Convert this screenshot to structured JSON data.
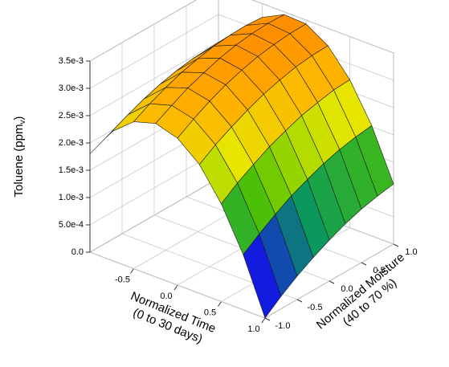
{
  "chart_data": {
    "type": "surface",
    "x_label": [
      "Normalized Time",
      "(0 to 30 days)"
    ],
    "y_label": [
      "Normalized Moisture",
      "(40 to 70 %)"
    ],
    "z_label": [
      "Toluene (ppm",
      "v",
      ")"
    ],
    "x": [
      -1,
      -0.75,
      -0.5,
      -0.25,
      0,
      0.25,
      0.5,
      0.75,
      1
    ],
    "y": [
      -1,
      -0.75,
      -0.5,
      -0.25,
      0,
      0.25,
      0.5,
      0.75,
      1
    ],
    "z": [
      [
        0.0018,
        0.00193,
        0.00204,
        0.00213,
        0.00218,
        0.00222,
        0.00223,
        0.00221,
        0.00217
      ],
      [
        0.00236,
        0.0025,
        0.00262,
        0.00272,
        0.00279,
        0.00284,
        0.00286,
        0.00285,
        0.00282
      ],
      [
        0.00269,
        0.00285,
        0.00298,
        0.00309,
        0.00317,
        0.00323,
        0.00326,
        0.00327,
        0.00325
      ],
      [
        0.00281,
        0.00297,
        0.00312,
        0.00323,
        0.00333,
        0.0034,
        0.00344,
        0.00346,
        0.00345
      ],
      [
        0.00269,
        0.00287,
        0.00303,
        0.00316,
        0.00326,
        0.00334,
        0.00339,
        0.00342,
        0.00343
      ],
      [
        0.00236,
        0.00255,
        0.00271,
        0.00285,
        0.00297,
        0.00306,
        0.00313,
        0.00317,
        0.00318
      ],
      [
        0.00179,
        0.002,
        0.00217,
        0.00233,
        0.00245,
        0.00256,
        0.00263,
        0.00269,
        0.00271
      ],
      [
        0.00101,
        0.00122,
        0.00141,
        0.00158,
        0.00171,
        0.00183,
        0.00192,
        0.00198,
        0.00202
      ],
      [
        0.0,
        0.00023,
        0.00043,
        0.0006,
        0.00075,
        0.00088,
        0.00098,
        0.00105,
        0.0011
      ]
    ],
    "xlim": [
      -1,
      1
    ],
    "ylim": [
      -1,
      1
    ],
    "zlim": [
      0,
      0.0035
    ],
    "xticks": [
      -0.5,
      {
        "value": 0,
        "label": "0.0"
      },
      0.5,
      {
        "value": 1,
        "label": "1.0"
      }
    ],
    "yticks": [
      {
        "value": -1,
        "label": "-1.0"
      },
      -0.5,
      {
        "value": 0,
        "label": "0.0"
      },
      0.5,
      {
        "value": 1,
        "label": "1.0"
      }
    ],
    "zticks": [
      {
        "value": 0,
        "label": "0.0"
      },
      {
        "value": 0.0005,
        "label": "5.0e-4"
      },
      {
        "value": 0.001,
        "label": "1.0e-3"
      },
      {
        "value": 0.0015,
        "label": "1.5e-3"
      },
      {
        "value": 0.002,
        "label": "2.0e-3"
      },
      {
        "value": 0.0025,
        "label": "2.5e-3"
      },
      {
        "value": 0.003,
        "label": "3.0e-3"
      },
      {
        "value": 0.0035,
        "label": "3.5e-3"
      }
    ],
    "grid": true,
    "colormap": [
      "#3c0090",
      "#1414e6",
      "#0a9a5a",
      "#52c400",
      "#e6e600",
      "#ffb400",
      "#ff8a00"
    ]
  }
}
